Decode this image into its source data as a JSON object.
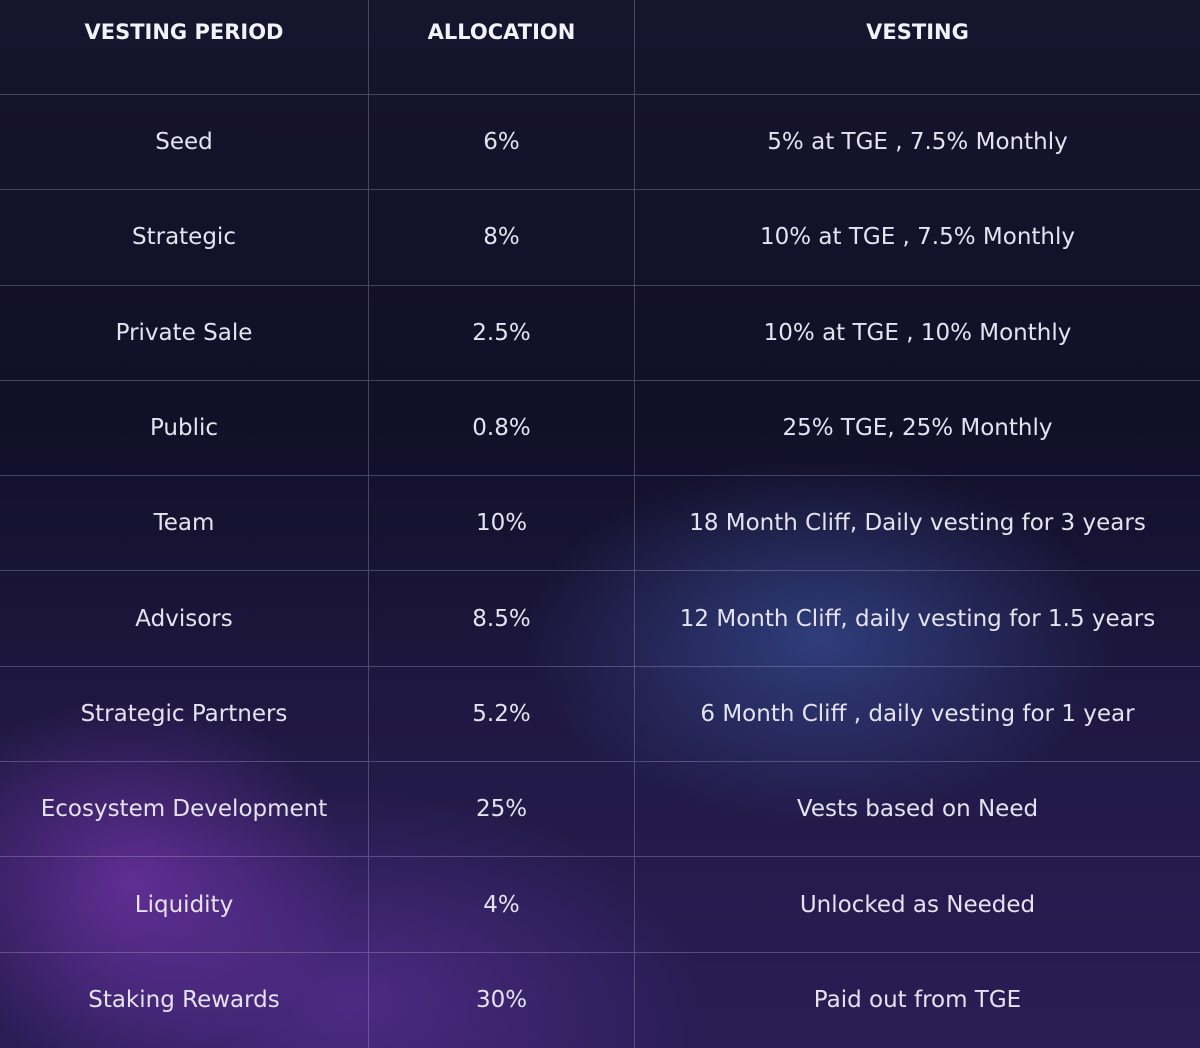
{
  "table": {
    "headers": [
      "VESTING PERIOD",
      "ALLOCATION",
      "VESTING"
    ],
    "rows": [
      [
        "Seed",
        "6%",
        "5% at TGE , 7.5% Monthly"
      ],
      [
        "Strategic",
        "8%",
        "10% at TGE , 7.5% Monthly"
      ],
      [
        "Private Sale",
        "2.5%",
        "10% at TGE , 10% Monthly"
      ],
      [
        "Public",
        "0.8%",
        "25% TGE, 25% Monthly"
      ],
      [
        "Team",
        "10%",
        "18 Month Cliff, Daily vesting for 3 years"
      ],
      [
        "Advisors",
        "8.5%",
        "12 Month Cliff, daily vesting for 1.5 years"
      ],
      [
        "Strategic Partners",
        "5.2%",
        "6 Month Cliff , daily vesting for 1 year"
      ],
      [
        "Ecosystem Development",
        "25%",
        "Vests based on Need"
      ],
      [
        "Liquidity",
        "4%",
        "Unlocked as Needed"
      ],
      [
        "Staking Rewards",
        "30%",
        "Paid out from TGE"
      ]
    ]
  }
}
